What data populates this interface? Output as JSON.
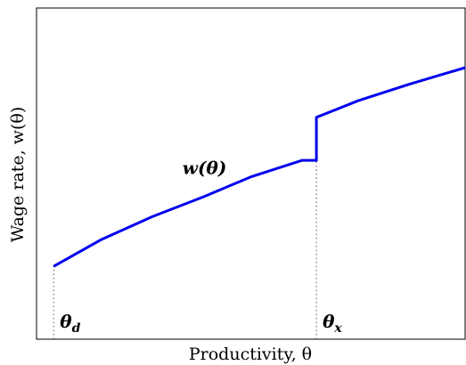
{
  "chart_data": {
    "type": "line",
    "title": "",
    "xlabel": "Productivity, θ",
    "ylabel": "Wage rate, w(θ)",
    "xlim": [
      0,
      1
    ],
    "ylim": [
      0,
      1
    ],
    "grid": false,
    "legend": "none",
    "series": [
      {
        "name": "",
        "color": "#0000ee",
        "x": [
          0.04,
          0.15,
          0.27,
          0.39,
          0.5,
          0.62,
          0.653,
          0.653,
          0.75,
          0.87,
          1.0
        ],
        "y": [
          0.22,
          0.3,
          0.37,
          0.43,
          0.49,
          0.54,
          0.54,
          0.67,
          0.72,
          0.77,
          0.82
        ]
      }
    ],
    "annotations": [
      {
        "id": "curve",
        "text": "w(θ)",
        "x": 0.34,
        "y": 0.49
      },
      {
        "id": "theta_d",
        "text": "θd",
        "x": 0.04,
        "y": 0.22
      },
      {
        "id": "theta_x",
        "text": "θx",
        "x": 0.653,
        "y": 0.54
      }
    ],
    "dotted_guides": [
      {
        "x": 0.04,
        "y_to": 0.22
      },
      {
        "x": 0.653,
        "y_to": 0.54
      }
    ]
  }
}
